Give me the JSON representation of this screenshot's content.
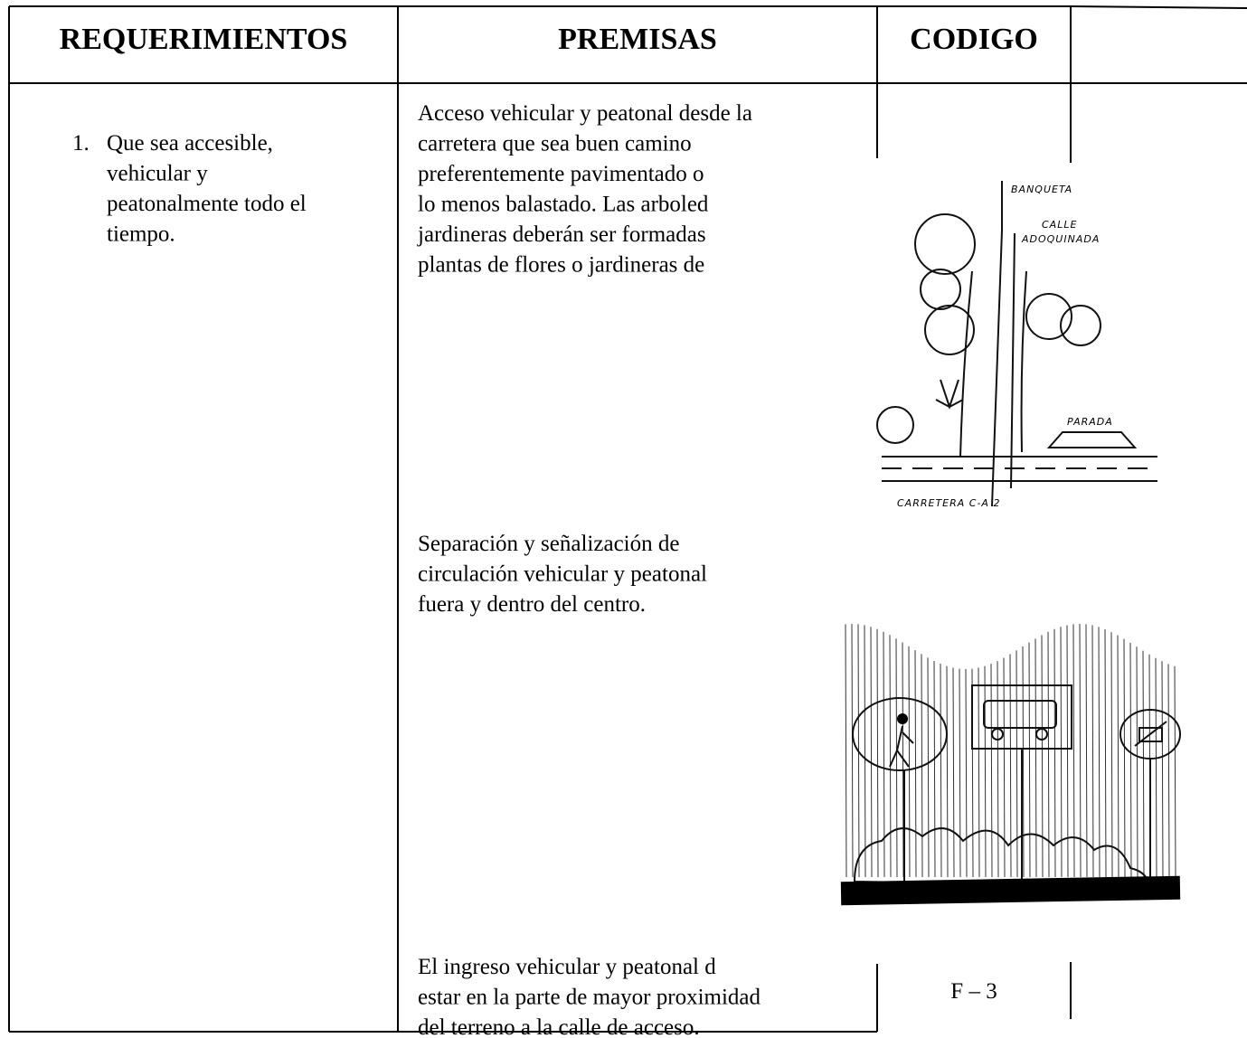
{
  "table": {
    "headers": [
      "REQUERIMIENTOS",
      "PREMISAS",
      "CODIGO"
    ],
    "requirement": {
      "number": "1.",
      "lines": [
        "Que sea accesible,",
        "vehicular y",
        "peatonalmente todo el",
        "tiempo."
      ]
    },
    "premises": [
      {
        "lines": [
          "Acceso vehicular y peatonal desde la",
          "carretera que sea buen camino",
          "preferentemente pavimentado o",
          "lo menos balastado. Las arboled",
          "jardineras deberán ser formadas",
          "plantas de flores o jardineras de"
        ]
      },
      {
        "lines": [
          "Separación y señalización de",
          "circulación  vehicular y peatonal",
          "fuera y dentro del centro."
        ]
      },
      {
        "lines": [
          "El ingreso vehicular y peatonal d",
          "estar en la parte de mayor proximidad",
          "del terreno a la calle de acceso."
        ]
      }
    ],
    "code": "F – 3"
  },
  "sketch_labels": [
    "BANQUETA",
    "CALLE",
    "ADOQUINADA",
    "PARADA",
    "CARRETERA C-A 2"
  ]
}
